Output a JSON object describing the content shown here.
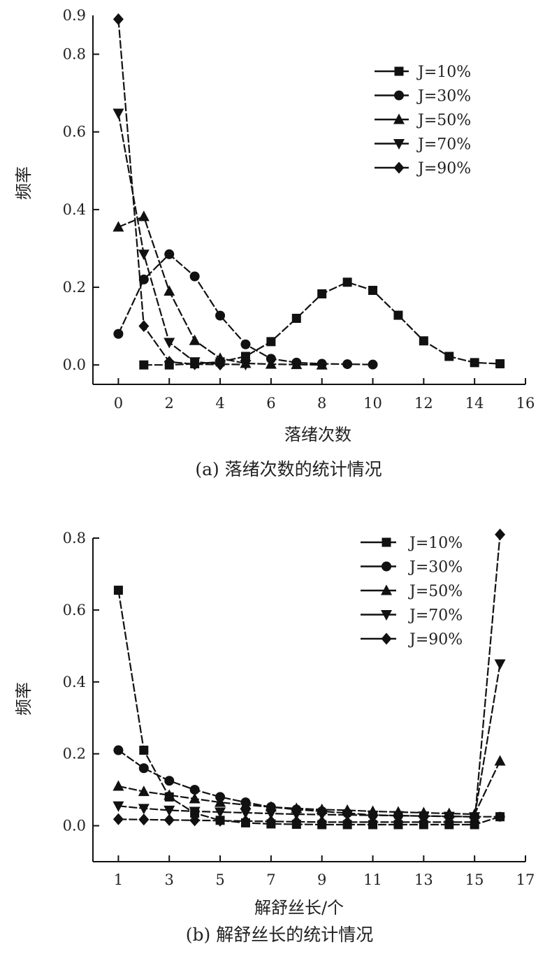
{
  "chart_data": [
    {
      "type": "line",
      "caption": "(a) 落绪次数的统计情况",
      "xlabel": "落绪次数",
      "ylabel": "频率",
      "xlim": [
        -1,
        16
      ],
      "ylim": [
        -0.05,
        0.9
      ],
      "xticks": [
        0,
        2,
        4,
        6,
        8,
        10,
        12,
        14,
        16
      ],
      "yticks": [
        0.0,
        0.2,
        0.4,
        0.6,
        0.8
      ],
      "ytick_labels": [
        "0.0",
        "0.2",
        "0.4",
        "0.6",
        "0.8",
        "0.9"
      ],
      "ytick_label_values": [
        0.0,
        0.2,
        0.4,
        0.6,
        0.8,
        0.9
      ],
      "legend_position": "top-right",
      "series": [
        {
          "name": "J=10%",
          "marker": "square",
          "x": [
            1,
            2,
            3,
            4,
            5,
            6,
            7,
            8,
            9,
            10,
            11,
            12,
            13,
            14,
            15
          ],
          "y": [
            0.0,
            0.0,
            0.003,
            0.008,
            0.022,
            0.06,
            0.12,
            0.183,
            0.213,
            0.192,
            0.128,
            0.062,
            0.022,
            0.006,
            0.003
          ]
        },
        {
          "name": "J=30%",
          "marker": "circle",
          "x": [
            0,
            1,
            2,
            3,
            4,
            5,
            6,
            7,
            8,
            9,
            10
          ],
          "y": [
            0.08,
            0.22,
            0.285,
            0.228,
            0.127,
            0.053,
            0.016,
            0.006,
            0.003,
            0.002,
            0.001
          ]
        },
        {
          "name": "J=50%",
          "marker": "triangle-up",
          "x": [
            0,
            1,
            2,
            3,
            4,
            5,
            6,
            7,
            8
          ],
          "y": [
            0.355,
            0.382,
            0.19,
            0.063,
            0.017,
            0.004,
            0.002,
            0.001,
            0.0
          ]
        },
        {
          "name": "J=70%",
          "marker": "triangle-down",
          "x": [
            0,
            1,
            2,
            3,
            4,
            5
          ],
          "y": [
            0.648,
            0.285,
            0.058,
            0.008,
            0.002,
            0.001
          ]
        },
        {
          "name": "J=90%",
          "marker": "diamond",
          "x": [
            0,
            1,
            2,
            3,
            4
          ],
          "y": [
            0.89,
            0.1,
            0.008,
            0.002,
            0.001
          ]
        }
      ]
    },
    {
      "type": "line",
      "caption": "(b) 解舒丝长的统计情况",
      "xlabel": "解舒丝长/个",
      "ylabel": "频率",
      "xlim": [
        0,
        17
      ],
      "ylim": [
        -0.1,
        0.8
      ],
      "xticks": [
        1,
        3,
        5,
        7,
        9,
        11,
        13,
        15,
        17
      ],
      "yticks": [
        0.0,
        0.2,
        0.4,
        0.6,
        0.8
      ],
      "ytick_labels": [
        "0.0",
        "0.2",
        "0.4",
        "0.6",
        "0.8"
      ],
      "ytick_label_values": [
        0.0,
        0.2,
        0.4,
        0.6,
        0.8
      ],
      "legend_position": "top-right",
      "series": [
        {
          "name": "J=10%",
          "marker": "square",
          "x": [
            1,
            2,
            3,
            4,
            5,
            6,
            7,
            8,
            9,
            10,
            11,
            12,
            13,
            14,
            15,
            16
          ],
          "y": [
            0.655,
            0.21,
            0.08,
            0.035,
            0.015,
            0.008,
            0.005,
            0.004,
            0.003,
            0.003,
            0.003,
            0.003,
            0.003,
            0.003,
            0.003,
            0.025
          ]
        },
        {
          "name": "J=30%",
          "marker": "circle",
          "x": [
            1,
            2,
            3,
            4,
            5,
            6,
            7,
            8,
            9,
            10,
            11,
            12,
            13,
            14,
            15,
            16
          ],
          "y": [
            0.21,
            0.16,
            0.125,
            0.1,
            0.08,
            0.065,
            0.052,
            0.045,
            0.04,
            0.035,
            0.03,
            0.028,
            0.027,
            0.026,
            0.025,
            0.025
          ]
        },
        {
          "name": "J=50%",
          "marker": "triangle-up",
          "x": [
            1,
            2,
            3,
            4,
            5,
            6,
            7,
            8,
            9,
            10,
            11,
            12,
            13,
            14,
            15,
            16
          ],
          "y": [
            0.11,
            0.095,
            0.085,
            0.075,
            0.065,
            0.058,
            0.052,
            0.048,
            0.045,
            0.043,
            0.04,
            0.038,
            0.036,
            0.034,
            0.032,
            0.18
          ]
        },
        {
          "name": "J=70%",
          "marker": "triangle-down",
          "x": [
            1,
            2,
            3,
            4,
            5,
            6,
            7,
            8,
            9,
            10,
            11,
            12,
            13,
            14,
            15,
            16
          ],
          "y": [
            0.055,
            0.048,
            0.043,
            0.04,
            0.038,
            0.036,
            0.034,
            0.032,
            0.031,
            0.03,
            0.029,
            0.028,
            0.027,
            0.026,
            0.025,
            0.45
          ]
        },
        {
          "name": "J=90%",
          "marker": "diamond",
          "x": [
            1,
            2,
            3,
            4,
            5,
            6,
            7,
            8,
            9,
            10,
            11,
            12,
            13,
            14,
            15,
            16
          ],
          "y": [
            0.018,
            0.017,
            0.016,
            0.015,
            0.014,
            0.013,
            0.012,
            0.011,
            0.01,
            0.01,
            0.01,
            0.01,
            0.01,
            0.01,
            0.01,
            0.81
          ]
        }
      ]
    }
  ]
}
